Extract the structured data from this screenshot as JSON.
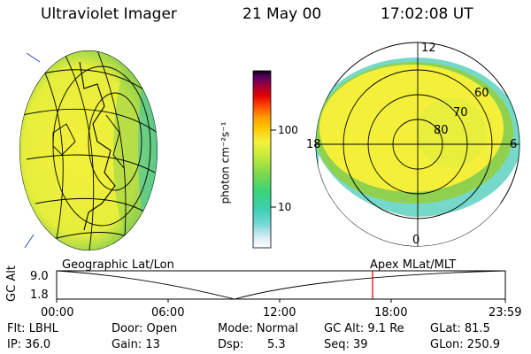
{
  "header": {
    "title": "Ultraviolet Imager",
    "date": "21 May 00",
    "time": "17:02:08 UT"
  },
  "colorbar": {
    "label": "photon cm⁻²s⁻¹",
    "ticks": [
      "100",
      "10"
    ]
  },
  "polar_plot": {
    "mlt_labels": {
      "top": "12",
      "left": "18",
      "right": "6",
      "bottom": "0"
    },
    "lat_labels": [
      "60",
      "70",
      "80"
    ]
  },
  "panel_labels": {
    "left": "Geographic Lat/Lon",
    "right": "Apex MLat/MLT"
  },
  "altitude_plot": {
    "ylabel": "GC Alt",
    "y_ticks": [
      "9.0",
      "1.8"
    ],
    "x_ticks": [
      "00:00",
      "06:00",
      "12:00",
      "18:00",
      "23:59"
    ]
  },
  "info": {
    "row1": [
      "Flt: LBHL",
      "Door: Open",
      "Mode: Normal",
      "GC Alt: 9.1 Re",
      "GLat:  81.5"
    ],
    "row2": [
      "IP: 36.0",
      "Gain: 13",
      "Dsp:",
      "5.3",
      "Seq: 39",
      "GLon: 250.9"
    ]
  },
  "colors": {
    "marker": "#cc0000",
    "aurora_yellow": "#f5f03a",
    "aurora_green": "#8fd14f",
    "aurora_teal": "#3cc7b0"
  }
}
